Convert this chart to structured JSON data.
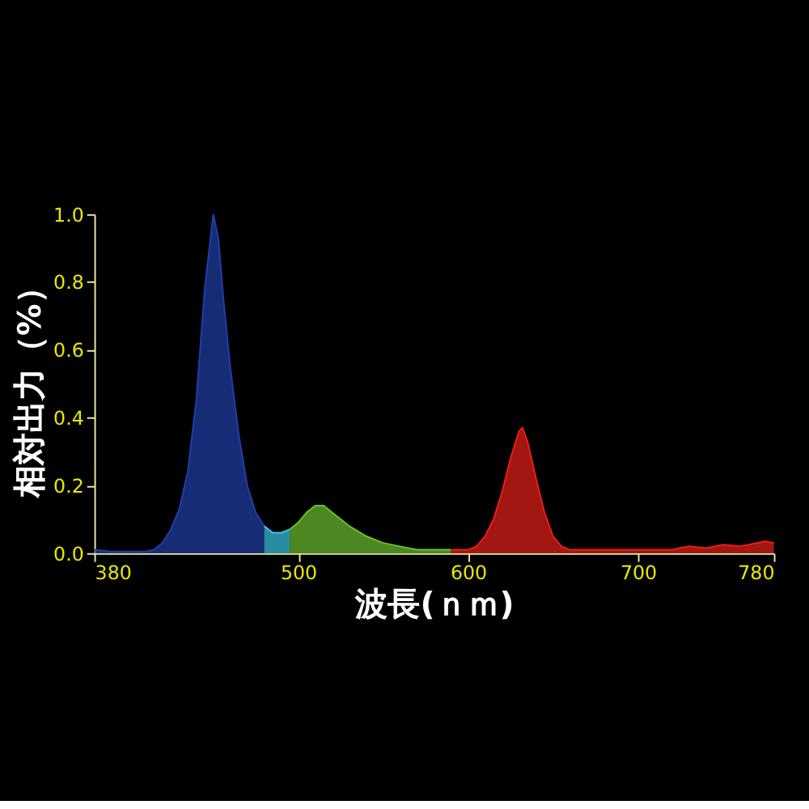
{
  "chart_data": {
    "type": "area",
    "xlabel": "波長(ｎｍ)",
    "ylabel": "相対出力（%）",
    "xlim": [
      380,
      780
    ],
    "xticks": [
      380,
      500,
      600,
      700,
      780
    ],
    "ylim": [
      0,
      1.0
    ],
    "yticks": [
      {
        "value": 0,
        "label": "0.0"
      },
      0.2,
      0.4,
      0.6,
      0.8,
      {
        "value": 1,
        "label": "1.0"
      }
    ],
    "grid": false,
    "series": [
      {
        "color": "#1f3fa8",
        "x": [
          380,
          390,
          400,
          410,
          415,
          420,
          425,
          430,
          435,
          440,
          445,
          450,
          453,
          456,
          460,
          465,
          470,
          475,
          480
        ],
        "values": [
          0.01,
          0.005,
          0.005,
          0.005,
          0.01,
          0.03,
          0.07,
          0.13,
          0.24,
          0.45,
          0.78,
          1.0,
          0.93,
          0.75,
          0.55,
          0.35,
          0.2,
          0.12,
          0.08
        ]
      },
      {
        "color": "#3cc8e8",
        "x": [
          480,
          485,
          490,
          495
        ],
        "values": [
          0.08,
          0.06,
          0.06,
          0.07
        ]
      },
      {
        "color": "#6cc030",
        "x": [
          495,
          500,
          505,
          510,
          515,
          520,
          525,
          530,
          540,
          550,
          560,
          570,
          580,
          590
        ],
        "values": [
          0.07,
          0.09,
          0.12,
          0.14,
          0.14,
          0.12,
          0.1,
          0.08,
          0.05,
          0.03,
          0.02,
          0.01,
          0.01,
          0.01
        ]
      },
      {
        "color": "#e82018",
        "x": [
          590,
          600,
          605,
          610,
          615,
          620,
          625,
          630,
          632,
          635,
          640,
          645,
          650,
          655,
          660,
          700,
          720,
          730,
          740,
          750,
          760,
          770,
          775,
          780
        ],
        "values": [
          0.01,
          0.01,
          0.02,
          0.05,
          0.1,
          0.18,
          0.28,
          0.36,
          0.37,
          0.33,
          0.22,
          0.12,
          0.05,
          0.02,
          0.01,
          0.01,
          0.01,
          0.02,
          0.015,
          0.025,
          0.02,
          0.03,
          0.035,
          0.03
        ]
      }
    ]
  }
}
